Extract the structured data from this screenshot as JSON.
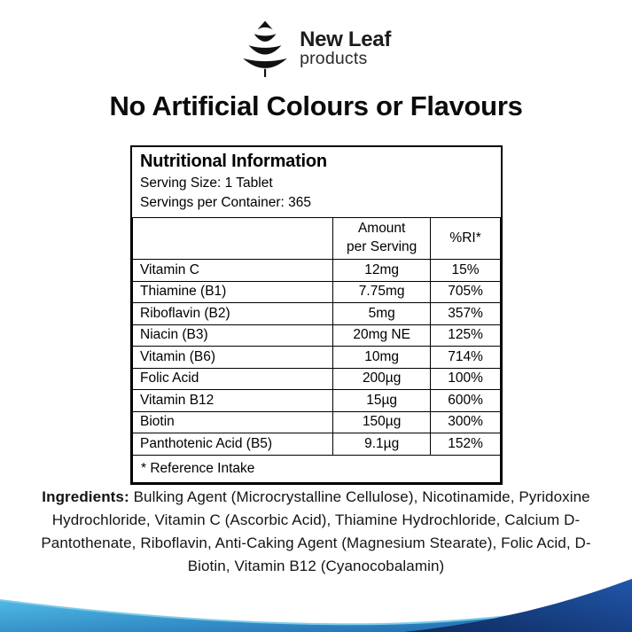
{
  "logo": {
    "icon": "tree-icon",
    "name": "New Leaf",
    "sub": "products"
  },
  "headline": "No Artificial Colours or Flavours",
  "nutrition_table": {
    "title": "Nutritional Information",
    "serving_size": "Serving Size: 1 Tablet",
    "servings_per_container": "Servings per Container: 365",
    "columns": [
      "",
      "Amount\nper Serving",
      "%RI*"
    ],
    "rows": [
      {
        "nutrient": "Vitamin C",
        "amount": "12mg",
        "ri": "15%"
      },
      {
        "nutrient": "Thiamine (B1)",
        "amount": "7.75mg",
        "ri": "705%"
      },
      {
        "nutrient": "Riboflavin (B2)",
        "amount": "5mg",
        "ri": "357%"
      },
      {
        "nutrient": "Niacin (B3)",
        "amount": "20mg NE",
        "ri": "125%"
      },
      {
        "nutrient": "Vitamin (B6)",
        "amount": "10mg",
        "ri": "714%"
      },
      {
        "nutrient": "Folic Acid",
        "amount": "200µg",
        "ri": "100%"
      },
      {
        "nutrient": "Vitamin B12",
        "amount": "15µg",
        "ri": "600%"
      },
      {
        "nutrient": "Biotin",
        "amount": "150µg",
        "ri": "300%"
      },
      {
        "nutrient": "Panthotenic Acid (B5)",
        "amount": "9.1µg",
        "ri": "152%"
      }
    ],
    "footnote": "* Reference Intake"
  },
  "ingredients": {
    "label": "Ingredients:",
    "text": "Bulking Agent (Microcrystalline Cellulose), Nicotinamide, Pyridoxine Hydrochloride, Vitamin C (Ascorbic Acid), Thiamine Hydrochloride, Calcium D-Pantothenate, Riboflavin, Anti-Caking Agent (Magnesium Stearate), Folic Acid, D-Biotin, Vitamin B12 (Cyanocobalamin)"
  },
  "colors": {
    "text": "#000000",
    "logo_ink": "#111111",
    "wave_light_start": "#4cb6e2",
    "wave_light_end": "#1d66ac",
    "wave_edge": "#7ecbea",
    "wave_dark_start": "#0e2a5e",
    "wave_dark_end": "#2157ab"
  }
}
